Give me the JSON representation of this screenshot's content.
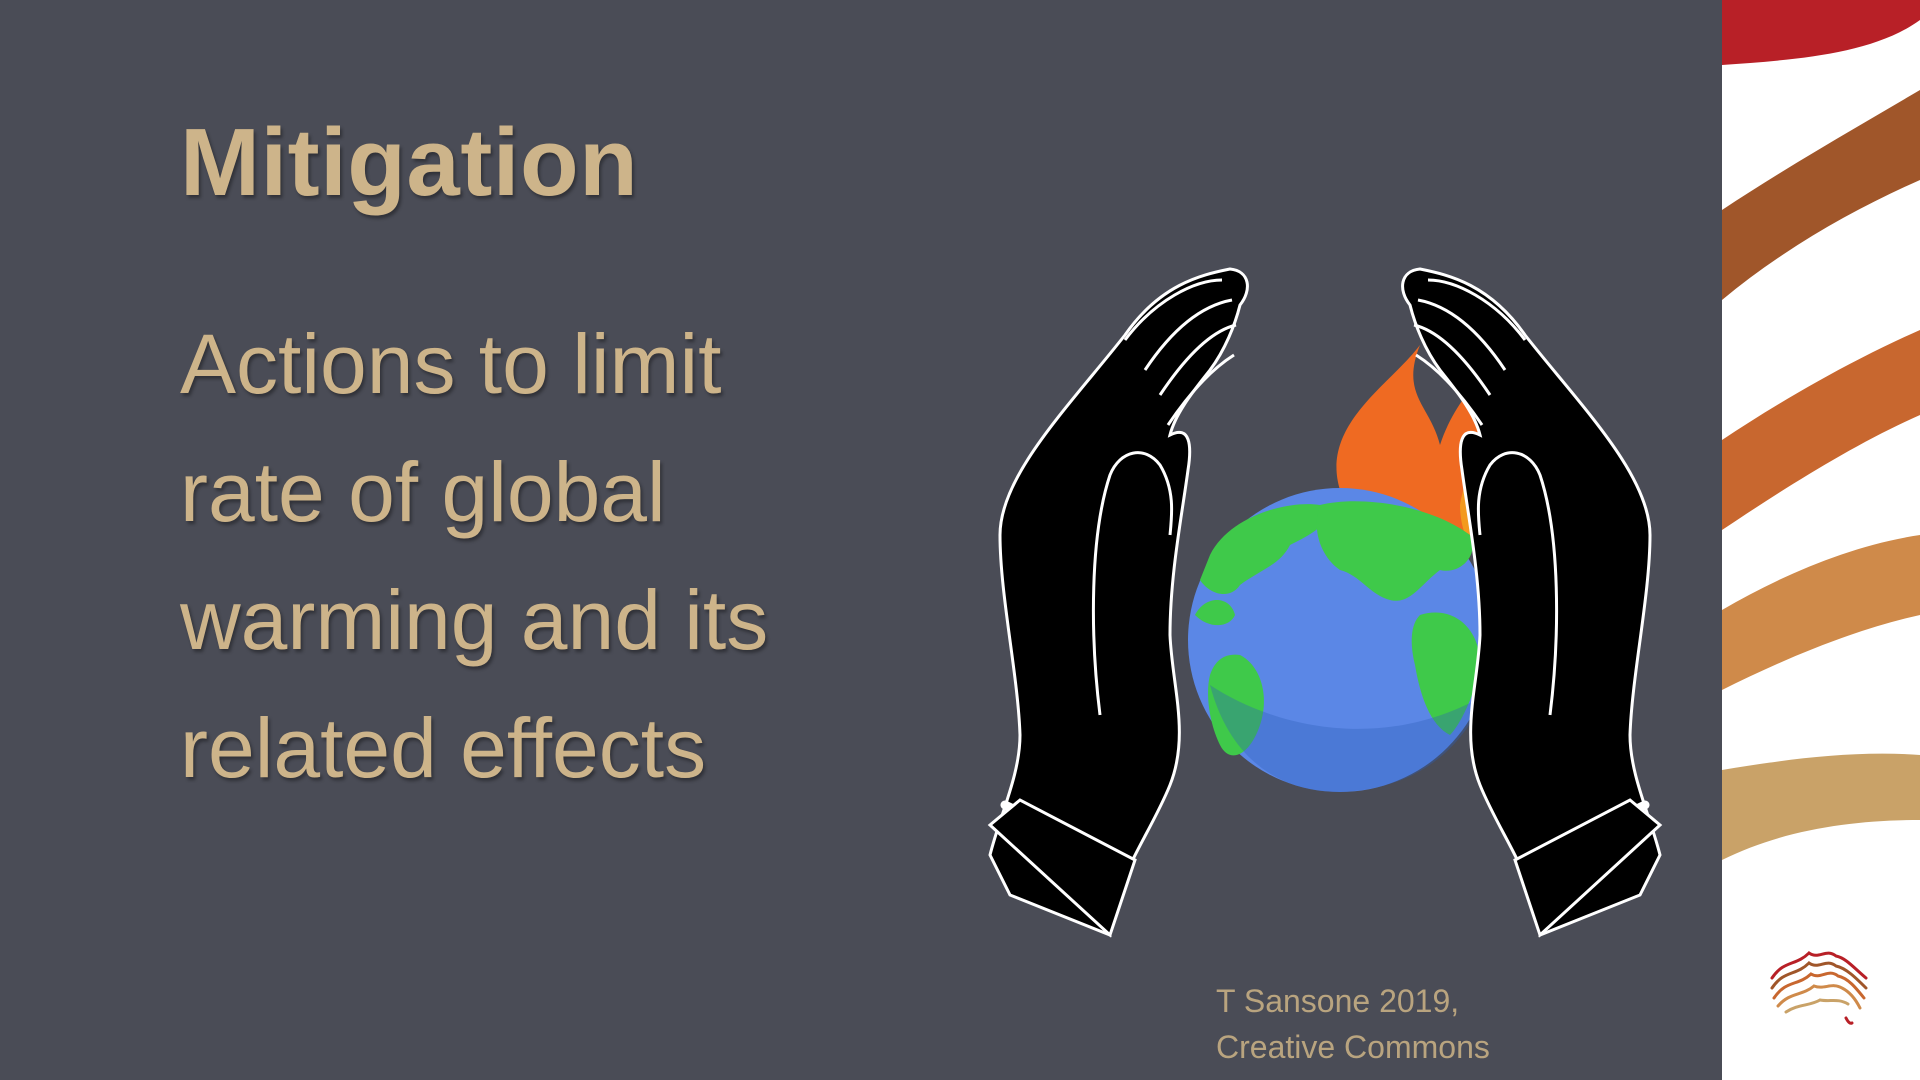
{
  "slide": {
    "title": "Mitigation",
    "body_lines": [
      "Actions to limit",
      "rate of global",
      "warming and its",
      "related effects"
    ],
    "credit_lines": [
      "T Sansone 2019,",
      "Creative Commons"
    ]
  },
  "illustration": {
    "icons": [
      "left-hand-icon",
      "right-hand-icon",
      "globe-icon",
      "flame-icon"
    ]
  },
  "colors": {
    "background": "#4a4c56",
    "text_gold": "#cdb48a",
    "stripe_red": "#b82027",
    "stripe_brown": "#a0562a",
    "stripe_orange": "#c8672f",
    "stripe_tan": "#cf8a4a",
    "stripe_sand": "#c9a268",
    "globe_blue": "#5b87e6",
    "globe_green": "#3fc94a",
    "flame_orange": "#f07a1e"
  }
}
